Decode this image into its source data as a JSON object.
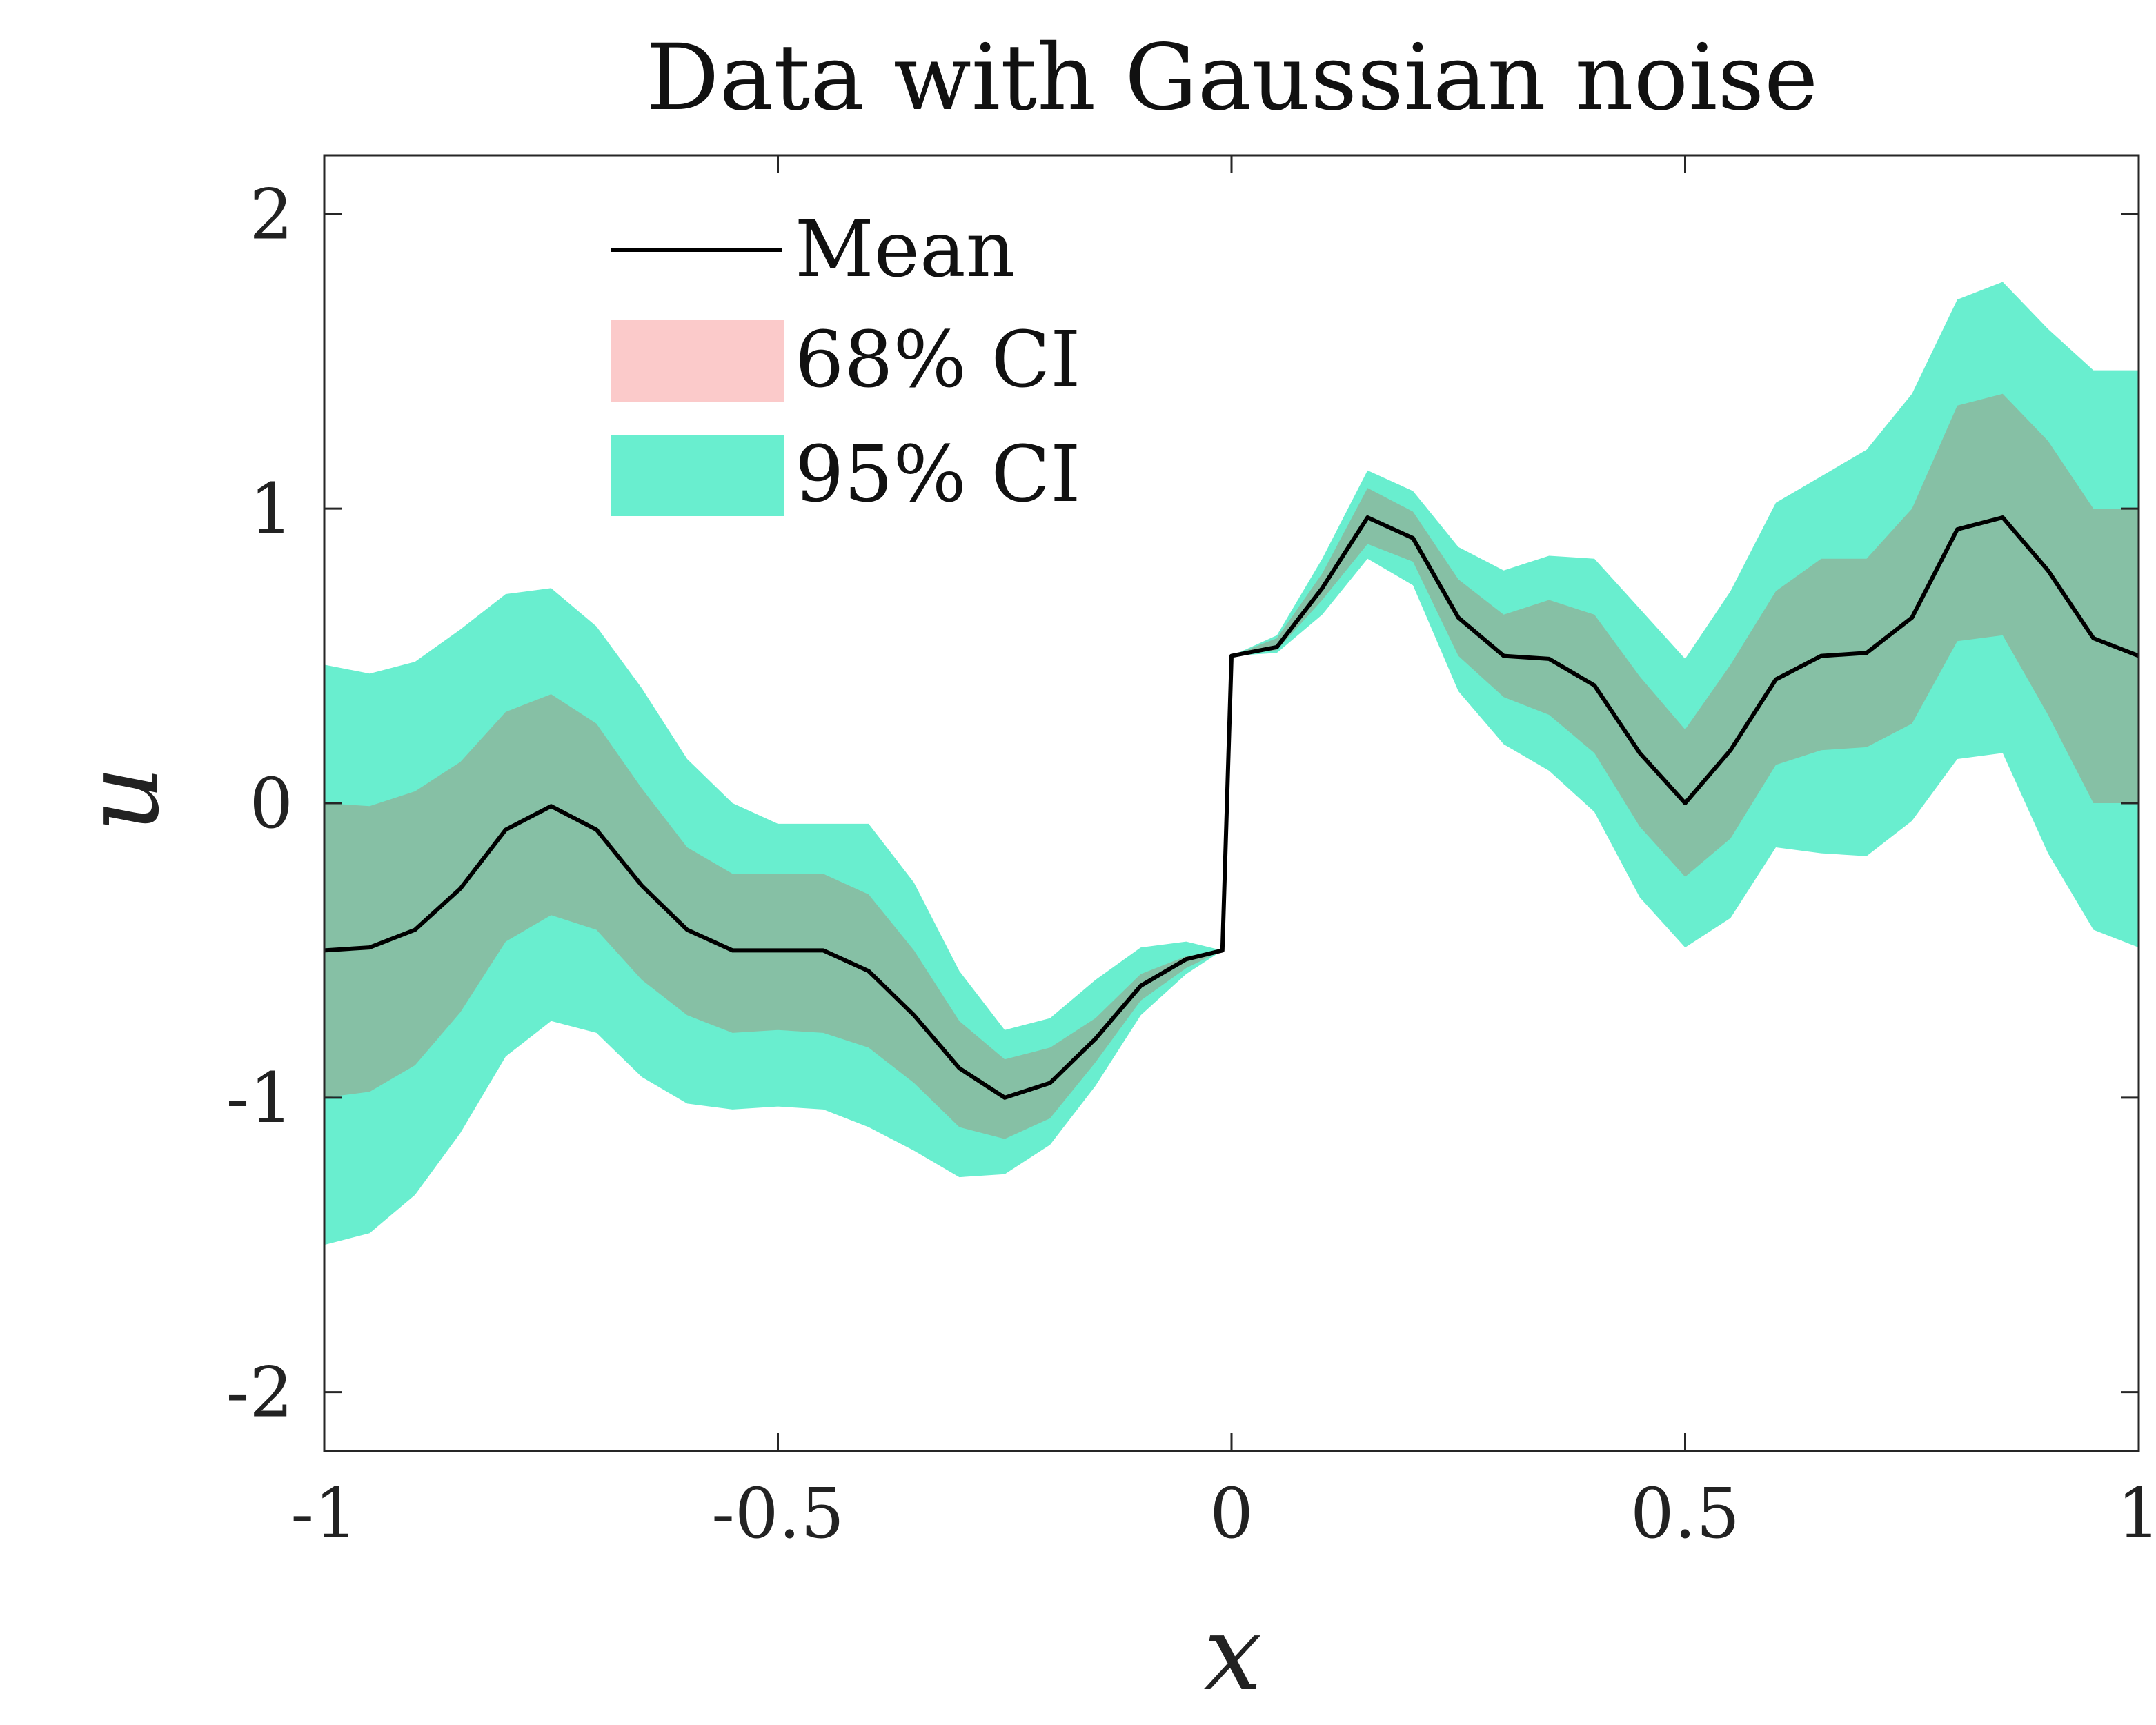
{
  "chart_data": {
    "type": "area",
    "title": "Data with Gaussian noise",
    "xlabel": "x",
    "ylabel": "u",
    "xlim": [
      -1,
      1
    ],
    "ylim": [
      -2.2,
      2.2
    ],
    "xticks": [
      -1,
      -0.5,
      0,
      0.5,
      1
    ],
    "xtick_labels": [
      "-1",
      "-0.5",
      "0",
      "0.5",
      "1"
    ],
    "yticks": [
      -2,
      -1,
      0,
      1,
      2
    ],
    "ytick_labels": [
      "-2",
      "-1",
      "0",
      "1",
      "2"
    ],
    "grid": false,
    "legend_position": "top-left",
    "legend": [
      {
        "key": "mean",
        "label": "Mean",
        "kind": "line"
      },
      {
        "key": "ci68",
        "label": "68% CI",
        "kind": "patch"
      },
      {
        "key": "ci95",
        "label": "95% CI",
        "kind": "patch"
      }
    ],
    "colors": {
      "mean": "#000000",
      "ci68": "#fbcaca",
      "ci95": "#69eecf",
      "overlap": "#86c0a5",
      "axes": "#262626"
    },
    "x": [
      -1.0,
      -0.95,
      -0.9,
      -0.85,
      -0.8,
      -0.75,
      -0.7,
      -0.65,
      -0.6,
      -0.55,
      -0.5,
      -0.45,
      -0.4,
      -0.35,
      -0.3,
      -0.25,
      -0.2,
      -0.15,
      -0.1,
      -0.05,
      -0.01,
      0.0,
      0.05,
      0.1,
      0.15,
      0.2,
      0.25,
      0.3,
      0.35,
      0.4,
      0.45,
      0.5,
      0.55,
      0.6,
      0.65,
      0.7,
      0.75,
      0.8,
      0.85,
      0.9,
      0.95,
      1.0
    ],
    "series": [
      {
        "name": "Mean",
        "values": [
          -0.5,
          -0.49,
          -0.43,
          -0.29,
          -0.09,
          -0.01,
          -0.09,
          -0.28,
          -0.43,
          -0.5,
          -0.5,
          -0.5,
          -0.57,
          -0.72,
          -0.9,
          -1.0,
          -0.95,
          -0.8,
          -0.62,
          -0.53,
          -0.5,
          0.5,
          0.53,
          0.73,
          0.97,
          0.9,
          0.63,
          0.5,
          0.49,
          0.4,
          0.17,
          0.0,
          0.18,
          0.42,
          0.5,
          0.51,
          0.63,
          0.93,
          0.97,
          0.79,
          0.56,
          0.5
        ]
      },
      {
        "name": "68% CI lower",
        "values": [
          -1.0,
          -0.98,
          -0.89,
          -0.71,
          -0.47,
          -0.38,
          -0.43,
          -0.6,
          -0.72,
          -0.78,
          -0.77,
          -0.78,
          -0.83,
          -0.95,
          -1.1,
          -1.14,
          -1.07,
          -0.88,
          -0.67,
          -0.56,
          -0.5,
          0.5,
          0.52,
          0.69,
          0.88,
          0.82,
          0.5,
          0.36,
          0.3,
          0.17,
          -0.08,
          -0.25,
          -0.12,
          0.13,
          0.18,
          0.19,
          0.27,
          0.55,
          0.57,
          0.3,
          0.0,
          0.0
        ]
      },
      {
        "name": "68% CI upper",
        "values": [
          0.0,
          -0.01,
          0.04,
          0.14,
          0.31,
          0.37,
          0.27,
          0.05,
          -0.15,
          -0.24,
          -0.24,
          -0.24,
          -0.31,
          -0.5,
          -0.74,
          -0.87,
          -0.83,
          -0.73,
          -0.58,
          -0.52,
          -0.5,
          0.5,
          0.56,
          0.78,
          1.07,
          0.99,
          0.76,
          0.64,
          0.69,
          0.64,
          0.43,
          0.25,
          0.47,
          0.72,
          0.83,
          0.83,
          1.0,
          1.35,
          1.39,
          1.23,
          1.0,
          1.0
        ]
      },
      {
        "name": "95% CI lower",
        "values": [
          -1.5,
          -1.46,
          -1.33,
          -1.12,
          -0.86,
          -0.74,
          -0.78,
          -0.93,
          -1.02,
          -1.04,
          -1.03,
          -1.04,
          -1.1,
          -1.18,
          -1.27,
          -1.26,
          -1.16,
          -0.96,
          -0.72,
          -0.58,
          -0.5,
          0.5,
          0.51,
          0.64,
          0.83,
          0.74,
          0.38,
          0.2,
          0.11,
          -0.03,
          -0.32,
          -0.49,
          -0.39,
          -0.15,
          -0.17,
          -0.18,
          -0.06,
          0.15,
          0.17,
          -0.17,
          -0.43,
          -0.49
        ]
      },
      {
        "name": "95% CI upper",
        "values": [
          0.47,
          0.44,
          0.48,
          0.59,
          0.71,
          0.73,
          0.6,
          0.39,
          0.15,
          0.0,
          -0.07,
          -0.07,
          -0.07,
          -0.27,
          -0.57,
          -0.77,
          -0.73,
          -0.6,
          -0.49,
          -0.47,
          -0.5,
          0.5,
          0.57,
          0.83,
          1.13,
          1.06,
          0.87,
          0.79,
          0.84,
          0.83,
          0.66,
          0.49,
          0.72,
          1.02,
          1.11,
          1.2,
          1.39,
          1.71,
          1.77,
          1.61,
          1.47,
          1.47
        ]
      }
    ]
  }
}
